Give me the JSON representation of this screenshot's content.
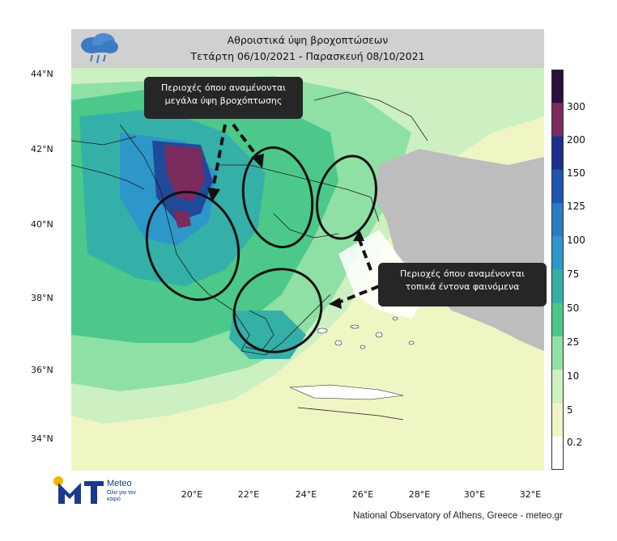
{
  "title": {
    "line1": "Αθροιστικά ύψη βροχοπτώσεων",
    "line2": "Τετάρτη 06/10/2021 - Παρασκευή 08/10/2021"
  },
  "icons": {
    "weather": "rain-cloud-icon",
    "logo": "meteo-logo-icon"
  },
  "axes": {
    "lat_labels": [
      "44°N",
      "42°N",
      "40°N",
      "38°N",
      "36°N",
      "34°N"
    ],
    "lon_labels": [
      "20°E",
      "22°E",
      "24°E",
      "26°E",
      "28°E",
      "30°E",
      "32°E"
    ]
  },
  "colorbar": {
    "labels": [
      "300",
      "200",
      "150",
      "125",
      "100",
      "75",
      "50",
      "25",
      "10",
      "5",
      "0.2"
    ],
    "colors": [
      "#2a0f3f",
      "#7b2a5e",
      "#1c2f8a",
      "#1e55b0",
      "#2a7cc4",
      "#2e97c9",
      "#35b0a8",
      "#4cc98a",
      "#8fe0a5",
      "#cdf0c2",
      "#f0f5c4",
      "#ffffff"
    ]
  },
  "callouts": {
    "heavy_rain": "Περιοχές όπου αναμένονται μεγάλα ύψη βροχόπτωσης",
    "local_severe": "Περιοχές όπου αναμένονται τοπικά έντονα φαινόμενα"
  },
  "logo": {
    "name": "Meteo",
    "tagline": "Όλα για τον καιρό"
  },
  "credit": "National Observatory of Athens, Greece - meteo.gr"
}
